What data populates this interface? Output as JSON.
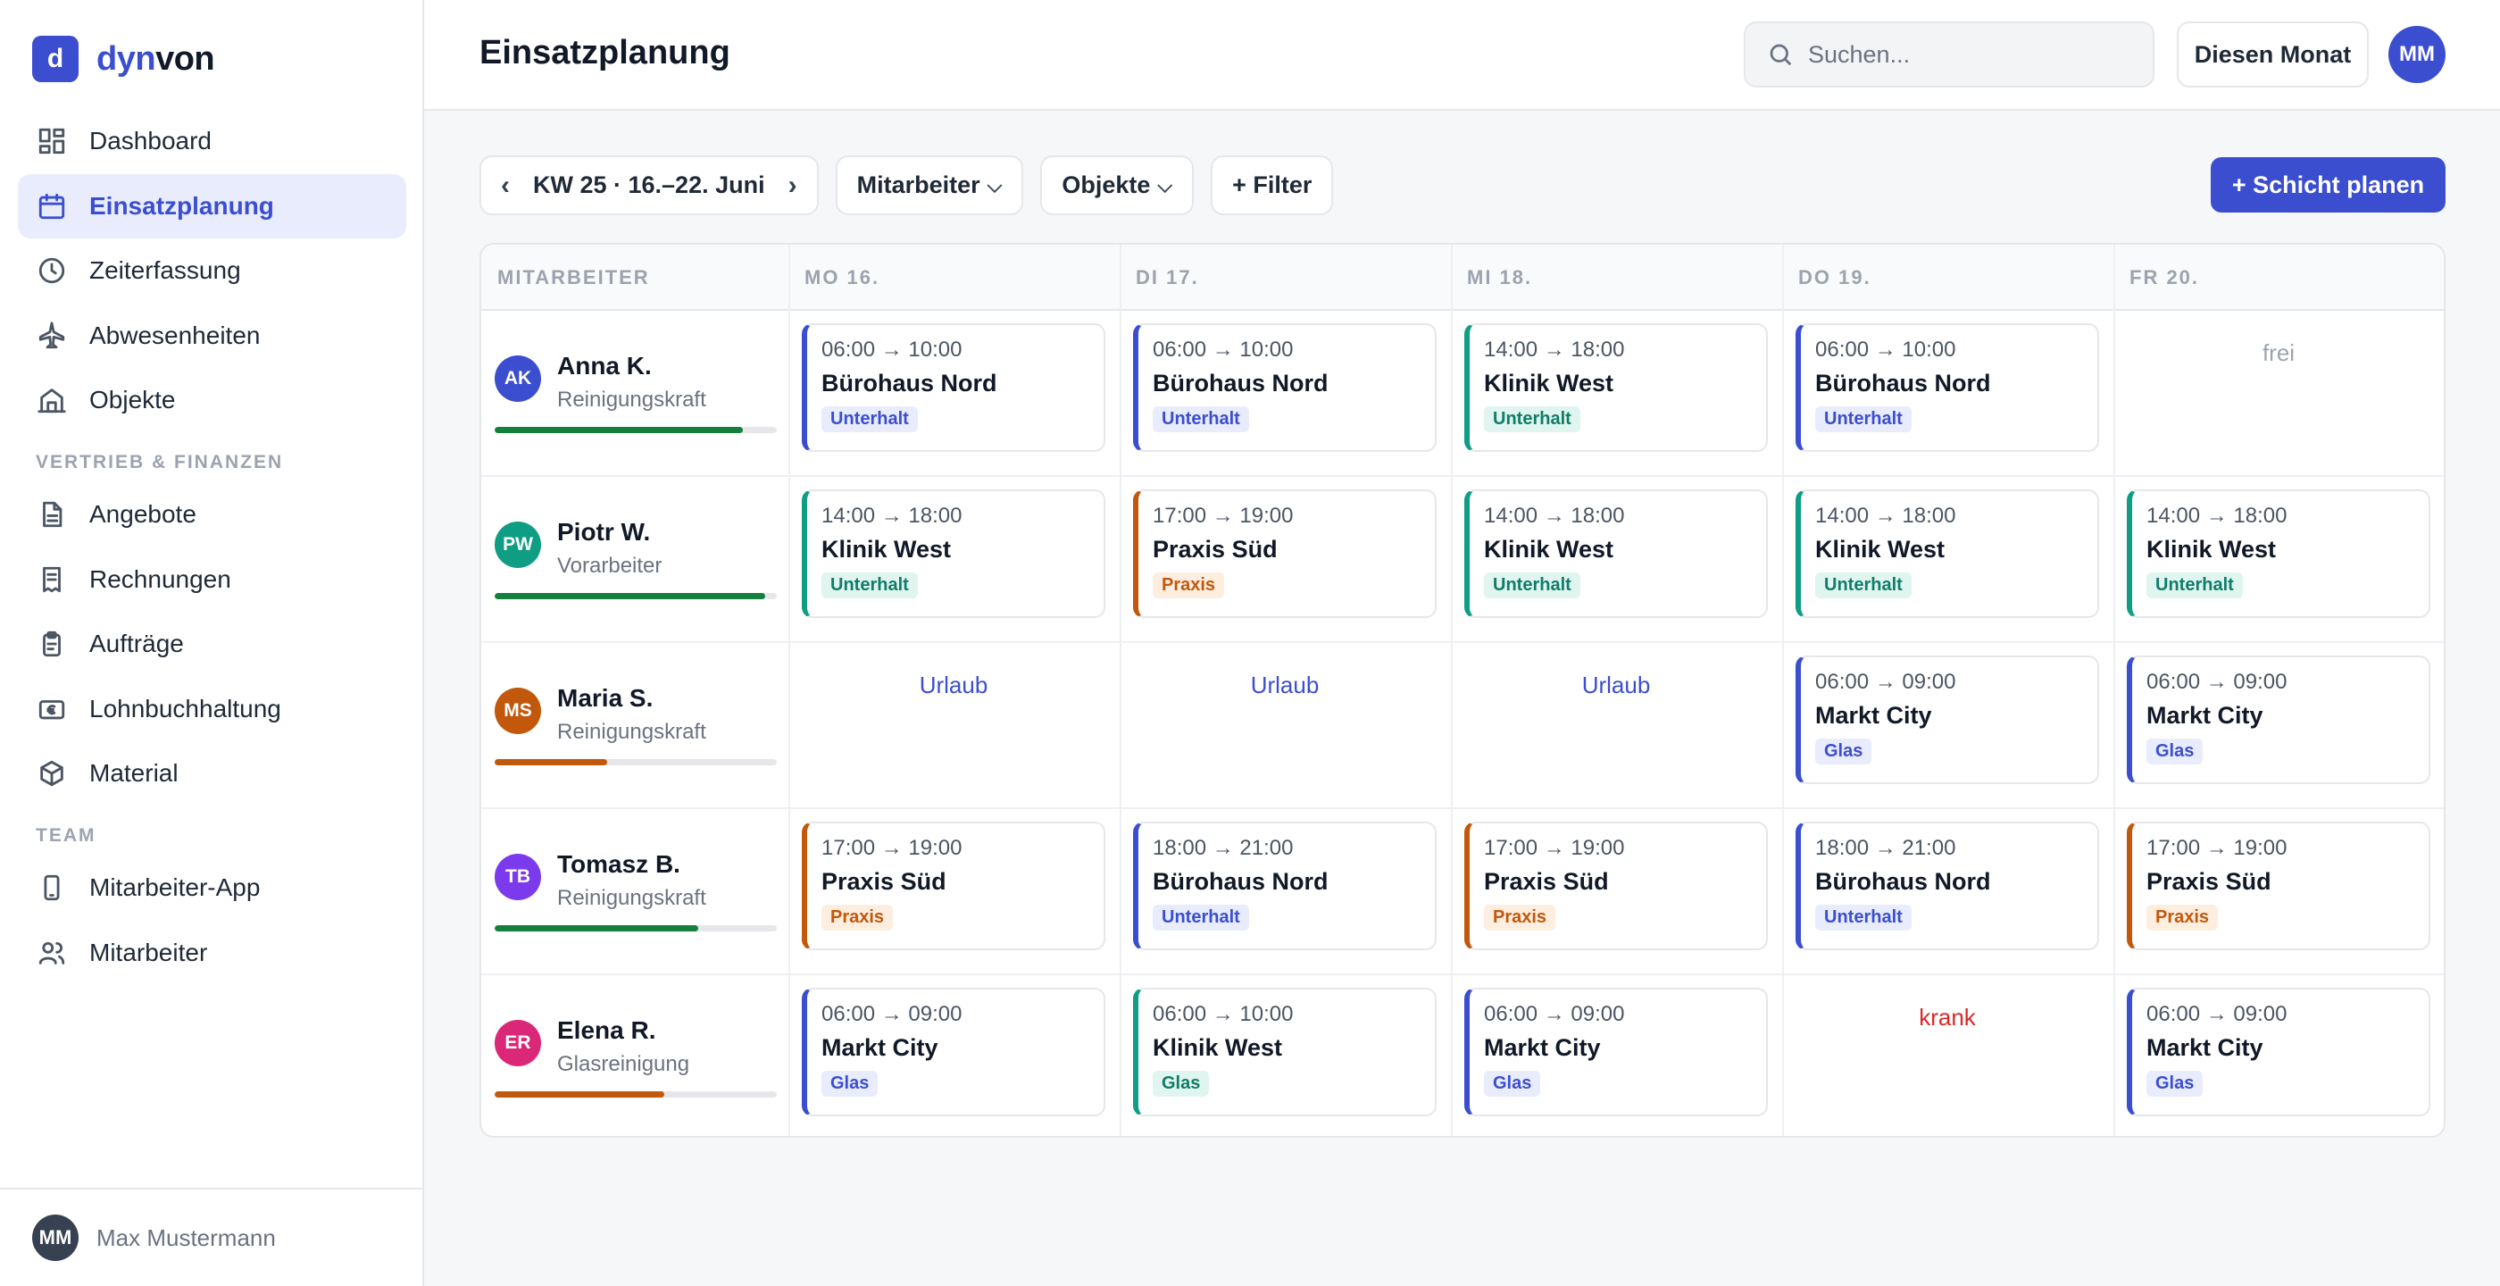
{
  "brand": {
    "mark": "d",
    "name_part1": "dyn",
    "name_part2": "von"
  },
  "sidebar": {
    "items": [
      {
        "label": "Dashboard",
        "icon": "grid-icon"
      },
      {
        "label": "Einsatzplanung",
        "icon": "calendar-icon",
        "active": true
      },
      {
        "label": "Zeiterfassung",
        "icon": "clock-icon"
      },
      {
        "label": "Abwesenheiten",
        "icon": "plane-icon"
      },
      {
        "label": "Objekte",
        "icon": "building-icon"
      }
    ],
    "section_sales": "VERTRIEB & FINANZEN",
    "sales_items": [
      {
        "label": "Angebote",
        "icon": "document-icon"
      },
      {
        "label": "Rechnungen",
        "icon": "receipt-icon"
      },
      {
        "label": "Aufträge",
        "icon": "clipboard-icon"
      },
      {
        "label": "Lohnbuchhaltung",
        "icon": "euro-icon"
      },
      {
        "label": "Material",
        "icon": "box-icon"
      }
    ],
    "section_team": "TEAM",
    "team_items": [
      {
        "label": "Mitarbeiter-App",
        "icon": "phone-icon"
      },
      {
        "label": "Mitarbeiter",
        "icon": "users-icon"
      }
    ],
    "user": {
      "initials": "MM",
      "name": "Max Mustermann"
    }
  },
  "header": {
    "title": "Einsatzplanung",
    "search_placeholder": "Suchen...",
    "month_button": "Diesen Monat",
    "avatar_initials": "MM"
  },
  "toolbar": {
    "prev": "‹",
    "week": "KW 25 · 16.–22. Juni",
    "next": "›",
    "filter_staff": "Mitarbeiter",
    "filter_objects": "Objekte",
    "add_filter": "+ Filter",
    "plan_shift": "+ Schicht planen"
  },
  "grid": {
    "columns": [
      "MITARBEITER",
      "MO 16.",
      "DI 17.",
      "MI 18.",
      "DO 19.",
      "FR 20."
    ],
    "colors": {
      "blue": "#3b4ecf",
      "teal": "#0f9d83",
      "orange": "#c2580c",
      "red": "#dc2626"
    },
    "rows": [
      {
        "initials": "AK",
        "name": "Anna K.",
        "role": "Reinigungskraft",
        "avatar_color": "#3b4ecf",
        "utilization": 0.88,
        "bar_color": "#15803d",
        "days": [
          {
            "type": "shift",
            "time": "06:00 → 10:00",
            "object": "Bürohaus Nord",
            "tag": "Unterhalt",
            "color": "blue"
          },
          {
            "type": "shift",
            "time": "06:00 → 10:00",
            "object": "Bürohaus Nord",
            "tag": "Unterhalt",
            "color": "blue"
          },
          {
            "type": "shift",
            "time": "14:00 → 18:00",
            "object": "Klinik West",
            "tag": "Unterhalt",
            "color": "teal"
          },
          {
            "type": "shift",
            "time": "06:00 → 10:00",
            "object": "Bürohaus Nord",
            "tag": "Unterhalt",
            "color": "blue"
          },
          {
            "type": "status",
            "text": "frei",
            "color": "gray"
          }
        ]
      },
      {
        "initials": "PW",
        "name": "Piotr W.",
        "role": "Vorarbeiter",
        "avatar_color": "#0f9d83",
        "utilization": 0.96,
        "bar_color": "#15803d",
        "days": [
          {
            "type": "shift",
            "time": "14:00 → 18:00",
            "object": "Klinik West",
            "tag": "Unterhalt",
            "color": "teal"
          },
          {
            "type": "shift",
            "time": "17:00 → 19:00",
            "object": "Praxis Süd",
            "tag": "Praxis",
            "color": "orange"
          },
          {
            "type": "shift",
            "time": "14:00 → 18:00",
            "object": "Klinik West",
            "tag": "Unterhalt",
            "color": "teal"
          },
          {
            "type": "shift",
            "time": "14:00 → 18:00",
            "object": "Klinik West",
            "tag": "Unterhalt",
            "color": "teal"
          },
          {
            "type": "shift",
            "time": "14:00 → 18:00",
            "object": "Klinik West",
            "tag": "Unterhalt",
            "color": "teal"
          }
        ]
      },
      {
        "initials": "MS",
        "name": "Maria S.",
        "role": "Reinigungskraft",
        "avatar_color": "#c2580c",
        "utilization": 0.4,
        "bar_color": "#c2580c",
        "days": [
          {
            "type": "status",
            "text": "Urlaub",
            "color": "blue"
          },
          {
            "type": "status",
            "text": "Urlaub",
            "color": "blue"
          },
          {
            "type": "status",
            "text": "Urlaub",
            "color": "blue"
          },
          {
            "type": "shift",
            "time": "06:00 → 09:00",
            "object": "Markt City",
            "tag": "Glas",
            "color": "blue"
          },
          {
            "type": "shift",
            "time": "06:00 → 09:00",
            "object": "Markt City",
            "tag": "Glas",
            "color": "blue"
          }
        ]
      },
      {
        "initials": "TB",
        "name": "Tomasz B.",
        "role": "Reinigungskraft",
        "avatar_color": "#7c3aed",
        "utilization": 0.72,
        "bar_color": "#15803d",
        "days": [
          {
            "type": "shift",
            "time": "17:00 → 19:00",
            "object": "Praxis Süd",
            "tag": "Praxis",
            "color": "orange"
          },
          {
            "type": "shift",
            "time": "18:00 → 21:00",
            "object": "Bürohaus Nord",
            "tag": "Unterhalt",
            "color": "blue"
          },
          {
            "type": "shift",
            "time": "17:00 → 19:00",
            "object": "Praxis Süd",
            "tag": "Praxis",
            "color": "orange"
          },
          {
            "type": "shift",
            "time": "18:00 → 21:00",
            "object": "Bürohaus Nord",
            "tag": "Unterhalt",
            "color": "blue"
          },
          {
            "type": "shift",
            "time": "17:00 → 19:00",
            "object": "Praxis Süd",
            "tag": "Praxis",
            "color": "orange"
          }
        ]
      },
      {
        "initials": "ER",
        "name": "Elena R.",
        "role": "Glasreinigung",
        "avatar_color": "#db2777",
        "utilization": 0.6,
        "bar_color": "#c2580c",
        "days": [
          {
            "type": "shift",
            "time": "06:00 → 09:00",
            "object": "Markt City",
            "tag": "Glas",
            "color": "blue"
          },
          {
            "type": "shift",
            "time": "06:00 → 10:00",
            "object": "Klinik West",
            "tag": "Glas",
            "color": "teal"
          },
          {
            "type": "shift",
            "time": "06:00 → 09:00",
            "object": "Markt City",
            "tag": "Glas",
            "color": "blue"
          },
          {
            "type": "status",
            "text": "krank",
            "color": "red"
          },
          {
            "type": "shift",
            "time": "06:00 → 09:00",
            "object": "Markt City",
            "tag": "Glas",
            "color": "blue"
          }
        ]
      }
    ]
  }
}
